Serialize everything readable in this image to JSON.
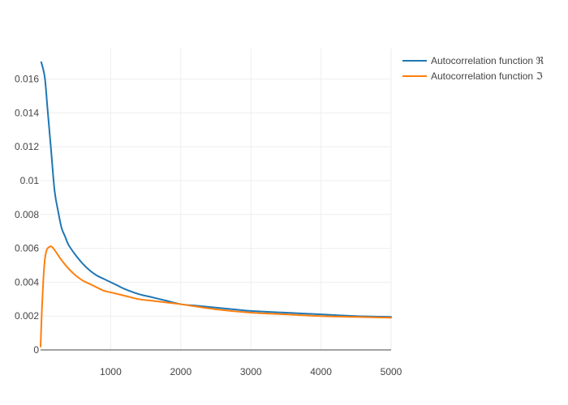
{
  "chart_data": {
    "type": "line",
    "title": "",
    "xlabel": "",
    "ylabel": "",
    "xlim": [
      0,
      5000
    ],
    "ylim": [
      0,
      0.0178
    ],
    "xticks": [
      1000,
      2000,
      3000,
      4000,
      5000
    ],
    "xtick_labels": [
      "1000",
      "2000",
      "3000",
      "4000",
      "5000"
    ],
    "yticks": [
      0,
      0.002,
      0.004,
      0.006,
      0.008,
      0.01,
      0.012,
      0.014,
      0.016
    ],
    "ytick_labels": [
      "0",
      "0.002",
      "0.004",
      "0.006",
      "0.008",
      "0.01",
      "0.012",
      "0.014",
      "0.016"
    ],
    "grid": true,
    "legend_position": "top-right",
    "series": [
      {
        "name": "Autocorrelation function ℜ",
        "color": "#1f77b4",
        "x": [
          10,
          60,
          100,
          150,
          200,
          250,
          300,
          350,
          400,
          500,
          600,
          700,
          800,
          900,
          1000,
          1100,
          1200,
          1400,
          1600,
          1800,
          2000,
          2250,
          2500,
          2750,
          3000,
          3500,
          4000,
          4500,
          5000
        ],
        "y": [
          0.017,
          0.0161,
          0.0142,
          0.0118,
          0.0094,
          0.0082,
          0.0072,
          0.0067,
          0.0062,
          0.0056,
          0.0051,
          0.0047,
          0.0044,
          0.0042,
          0.004,
          0.0038,
          0.0036,
          0.0033,
          0.0031,
          0.0029,
          0.0027,
          0.0026,
          0.0025,
          0.0024,
          0.0023,
          0.0022,
          0.0021,
          0.002,
          0.00195
        ]
      },
      {
        "name": "Autocorrelation function ℑ",
        "color": "#ff7f0e",
        "x": [
          0,
          20,
          40,
          60,
          80,
          100,
          130,
          160,
          200,
          250,
          300,
          400,
          500,
          600,
          700,
          800,
          900,
          1000,
          1200,
          1400,
          1600,
          1800,
          2000,
          2500,
          3000,
          3500,
          4000,
          4500,
          5000
        ],
        "y": [
          0.0002,
          0.0025,
          0.0042,
          0.0053,
          0.0058,
          0.006,
          0.0061,
          0.0061,
          0.0059,
          0.0056,
          0.0053,
          0.0048,
          0.0044,
          0.0041,
          0.0039,
          0.0037,
          0.0035,
          0.0034,
          0.0032,
          0.003,
          0.0029,
          0.0028,
          0.0027,
          0.0024,
          0.0022,
          0.0021,
          0.002,
          0.00195,
          0.0019
        ]
      }
    ]
  }
}
